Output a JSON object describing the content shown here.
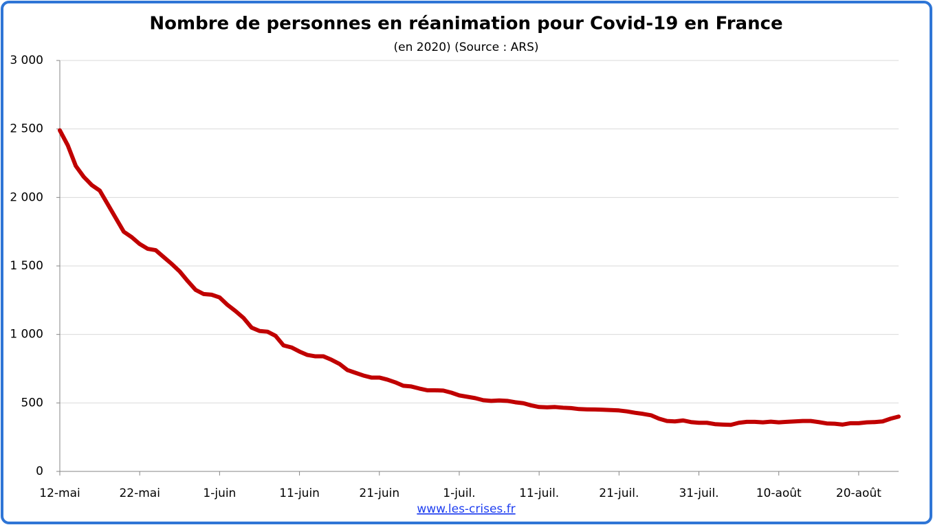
{
  "chart_data": {
    "type": "line",
    "title": "Nombre de personnes en réanimation pour Covid-19 en France",
    "subtitle": "(en 2020) (Source : ARS)",
    "footer": "www.les-crises.fr",
    "categories": [
      "12-mai",
      null,
      null,
      null,
      null,
      null,
      null,
      null,
      null,
      null,
      "22-mai",
      null,
      null,
      null,
      null,
      null,
      null,
      null,
      null,
      null,
      "1-juin",
      null,
      null,
      null,
      null,
      null,
      null,
      null,
      null,
      null,
      "11-juin",
      null,
      null,
      null,
      null,
      null,
      null,
      null,
      null,
      null,
      "21-juin",
      null,
      null,
      null,
      null,
      null,
      null,
      null,
      null,
      null,
      "1-juil.",
      null,
      null,
      null,
      null,
      null,
      null,
      null,
      null,
      null,
      "11-juil.",
      null,
      null,
      null,
      null,
      null,
      null,
      null,
      null,
      null,
      "21-juil.",
      null,
      null,
      null,
      null,
      null,
      null,
      null,
      null,
      null,
      "31-juil.",
      null,
      null,
      null,
      null,
      null,
      null,
      null,
      null,
      null,
      "10-août",
      null,
      null,
      null,
      null,
      null,
      null,
      null,
      null,
      null,
      "20-août",
      null,
      null,
      null,
      null,
      null
    ],
    "series": [
      {
        "name": "Réanimation",
        "color": "#c00000",
        "values": [
          2490,
          2380,
          2230,
          2150,
          2090,
          2050,
          1950,
          1850,
          1750,
          1710,
          1660,
          1625,
          1615,
          1565,
          1515,
          1460,
          1390,
          1325,
          1295,
          1290,
          1270,
          1215,
          1170,
          1120,
          1050,
          1025,
          1020,
          990,
          920,
          905,
          875,
          850,
          840,
          840,
          815,
          785,
          740,
          720,
          700,
          685,
          685,
          670,
          650,
          625,
          620,
          605,
          592,
          592,
          590,
          575,
          555,
          545,
          535,
          520,
          515,
          518,
          515,
          505,
          498,
          482,
          470,
          468,
          470,
          465,
          462,
          455,
          453,
          452,
          450,
          448,
          445,
          438,
          428,
          420,
          410,
          385,
          368,
          365,
          372,
          360,
          355,
          355,
          345,
          342,
          340,
          355,
          362,
          362,
          358,
          363,
          358,
          362,
          365,
          368,
          368,
          360,
          350,
          348,
          342,
          352,
          352,
          358,
          360,
          365,
          385,
          400
        ]
      }
    ],
    "ylim": [
      0,
      3000
    ],
    "yticks": [
      0,
      500,
      {
        "value": 1000,
        "label": "1 000"
      },
      {
        "value": 1500,
        "label": "1 500"
      },
      {
        "value": 2000,
        "label": "2 000"
      },
      {
        "value": 2500,
        "label": "2 500"
      },
      {
        "value": 3000,
        "label": "3 000"
      }
    ],
    "grid": true
  }
}
